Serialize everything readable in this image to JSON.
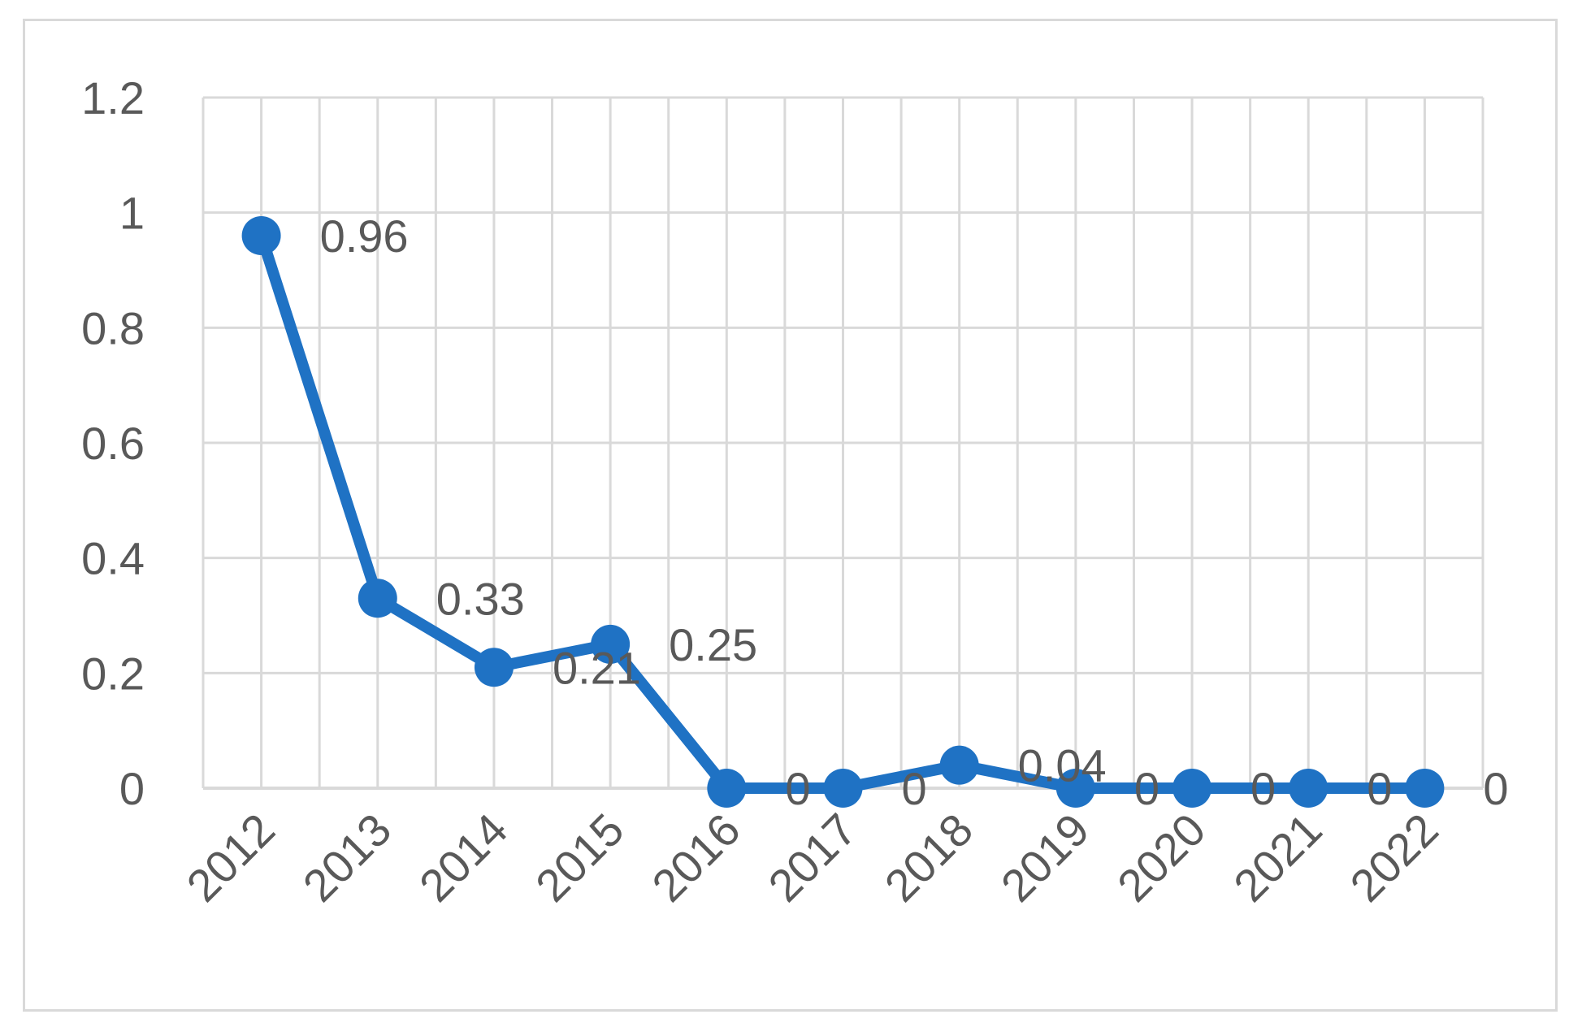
{
  "chart_data": {
    "type": "line",
    "categories": [
      "2012",
      "2013",
      "2014",
      "2015",
      "2016",
      "2017",
      "2018",
      "2019",
      "2020",
      "2021",
      "2022"
    ],
    "series": [
      {
        "values": [
          0.96,
          0.33,
          0.21,
          0.25,
          0,
          0,
          0.04,
          0,
          0,
          0,
          0
        ]
      }
    ],
    "data_labels": [
      "0.96",
      "0.33",
      "0.21",
      "0.25",
      "0",
      "0",
      "0.04",
      "0",
      "0",
      "0",
      "0"
    ],
    "y_ticks": [
      "0",
      "0.2",
      "0.4",
      "0.6",
      "0.8",
      "1",
      "1.2"
    ],
    "ylim": [
      0,
      1.2
    ],
    "grid": true,
    "legend": "none",
    "colors": {
      "series": "#1f72c4",
      "grid": "#d9d9d9",
      "text": "#595959"
    }
  }
}
